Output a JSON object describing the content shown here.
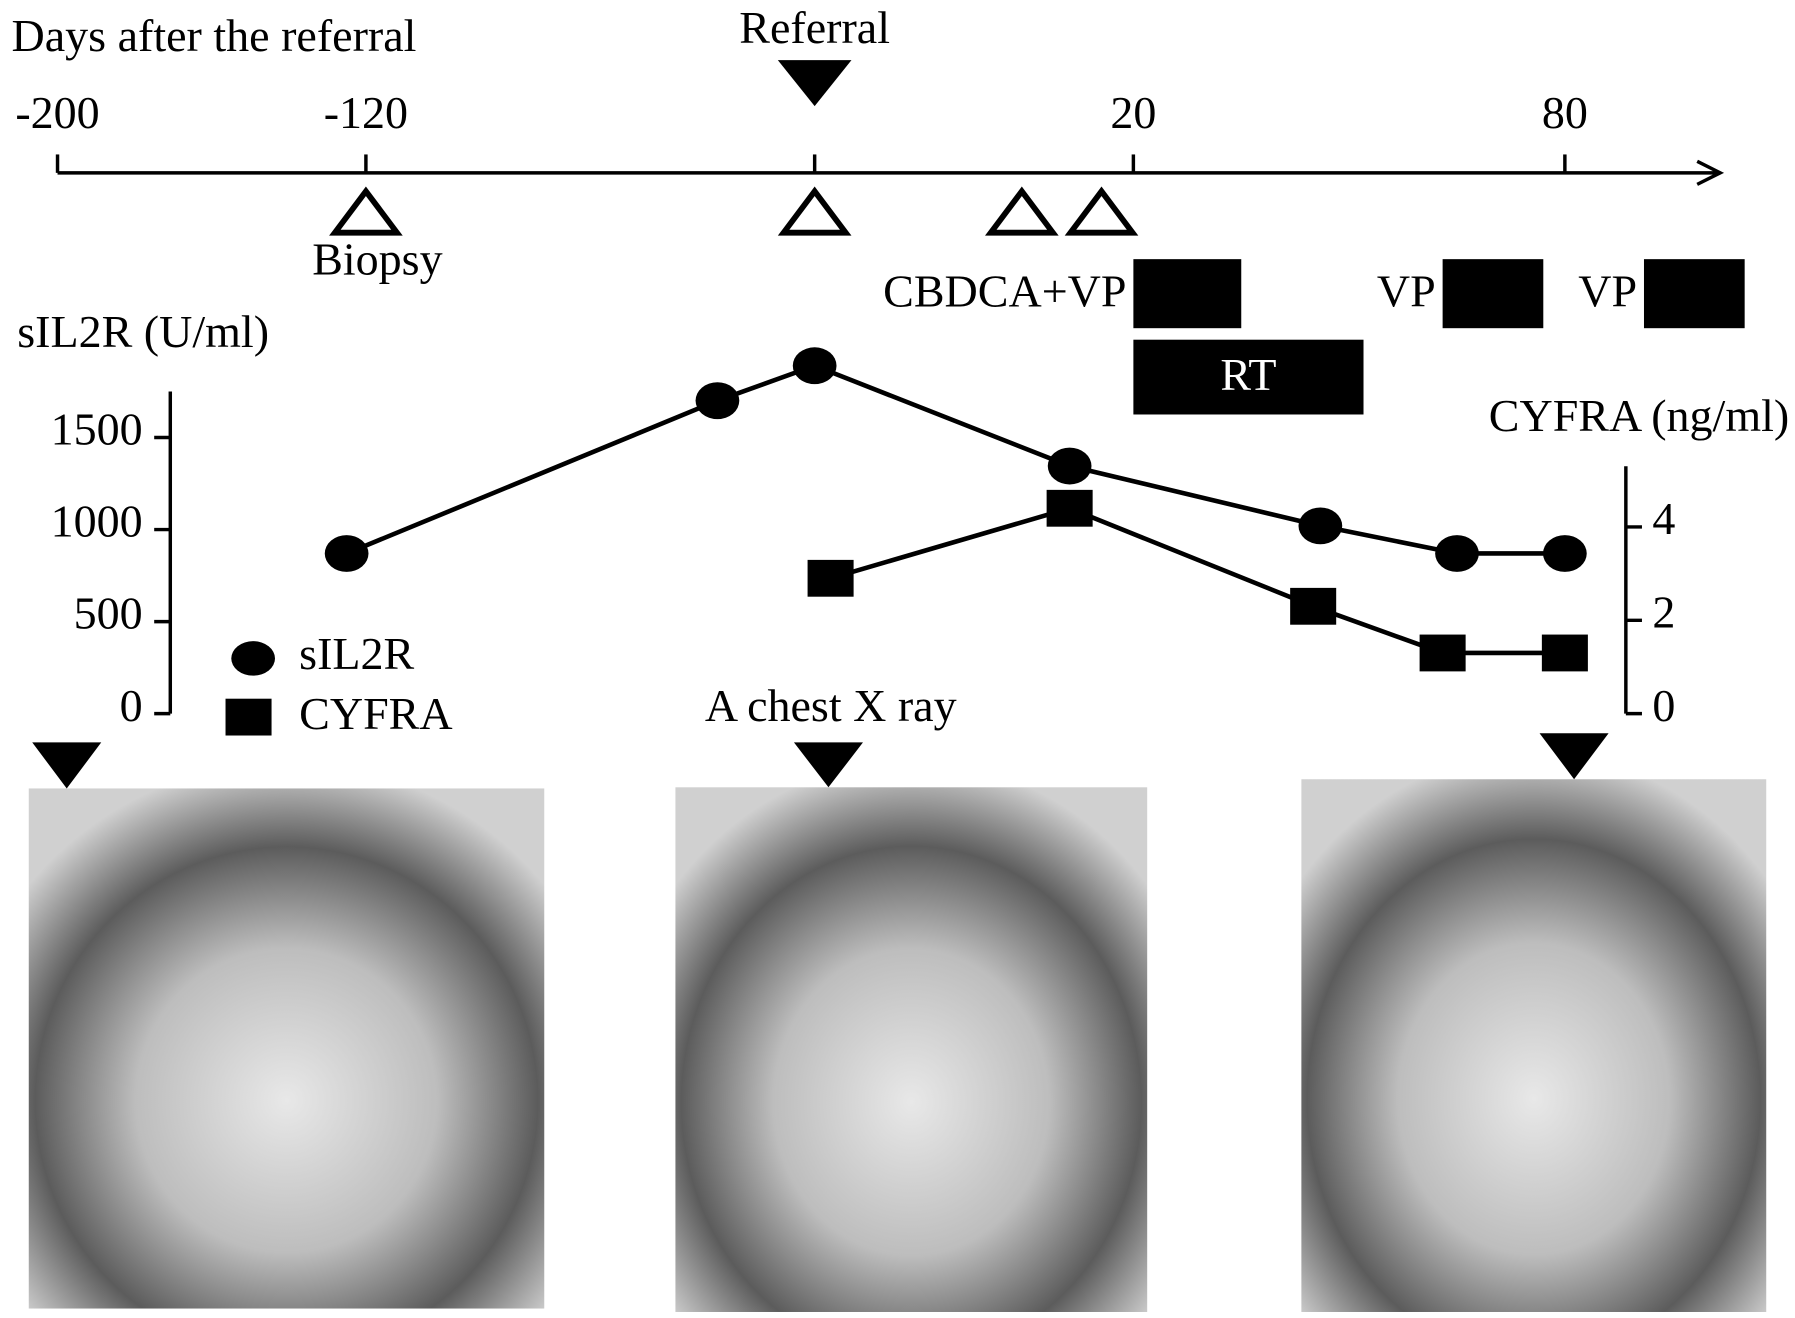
{
  "chart_data": {
    "type": "timeline",
    "x_label": "Days after the referral",
    "xticks": [
      -200,
      -120,
      20,
      80
    ],
    "referral": {
      "label": "Referral",
      "x": 0
    },
    "procedures": [
      {
        "x": -120,
        "label": "Biopsy"
      },
      {
        "x": 0
      },
      {
        "x": 13
      },
      {
        "x": 18
      }
    ],
    "treatments": [
      {
        "name": "CBDCA+VP",
        "start": 20,
        "end": 35
      },
      {
        "name": "RT",
        "start": 20,
        "end": 52
      },
      {
        "name": "VP",
        "start": 63,
        "end": 77
      },
      {
        "name": "VP",
        "start": 91,
        "end": 105
      }
    ],
    "y_label": "sIL2R (U/ml)",
    "ylim": [
      0,
      1750
    ],
    "yticks": [
      0,
      500,
      1000,
      1500
    ],
    "y2_label": "CYFRA (ng/ml)",
    "y2lim": [
      0,
      5.3
    ],
    "y2ticks": [
      0,
      2,
      4
    ],
    "series": [
      {
        "name": "sIL2R",
        "color": "#000000",
        "marker": "circle",
        "x": [
          -125,
          -26,
          0,
          16,
          46,
          65,
          80
        ],
        "values": [
          870,
          1700,
          1890,
          1345,
          1020,
          870,
          870
        ]
      },
      {
        "name": "CYFRA",
        "color": "#000000",
        "marker": "square",
        "axis": "y2",
        "x": [
          1,
          16,
          45,
          63,
          80
        ],
        "values": [
          2.9,
          4.4,
          2.3,
          1.3,
          1.3
        ]
      }
    ],
    "xray_label": "A chest X ray"
  }
}
